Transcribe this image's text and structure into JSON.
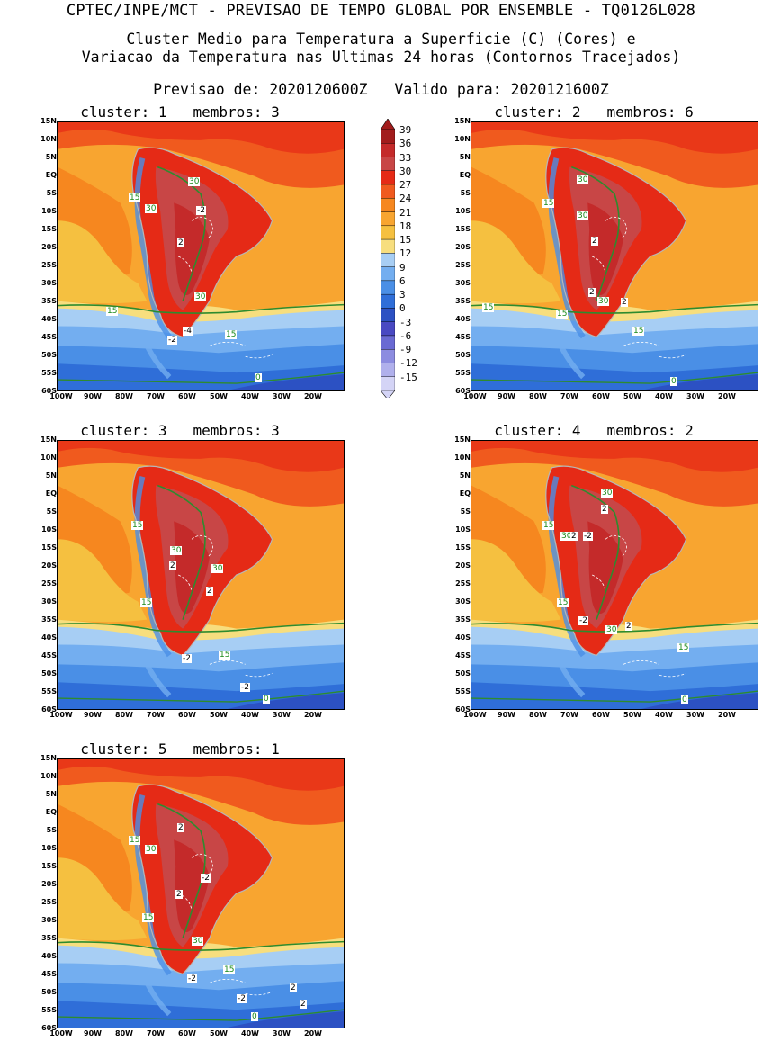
{
  "header": {
    "line1": "CPTEC/INPE/MCT - PREVISAO DE TEMPO GLOBAL POR ENSEMBLE - TQ0126L028",
    "line2": "Cluster Medio para Temperatura a Superficie (C) (Cores) e",
    "line3": "Variacao da Temperatura nas Ultimas 24 horas (Contornos Tracejados)",
    "line4": "Previsao de: 2020120600Z   Valido para: 2020121600Z"
  },
  "lat_labels": [
    "15N",
    "10N",
    "5N",
    "EQ",
    "5S",
    "10S",
    "15S",
    "20S",
    "25S",
    "30S",
    "35S",
    "40S",
    "45S",
    "50S",
    "55S",
    "60S"
  ],
  "lon_labels": [
    "100W",
    "90W",
    "80W",
    "70W",
    "60W",
    "50W",
    "40W",
    "30W",
    "20W"
  ],
  "colorbar": {
    "labels": [
      "39",
      "36",
      "33",
      "30",
      "27",
      "24",
      "21",
      "18",
      "15",
      "12",
      "9",
      "6",
      "3",
      "0",
      "-3",
      "-6",
      "-9",
      "-12",
      "-15"
    ],
    "colors": [
      "#a21c1c",
      "#c42a2a",
      "#c84646",
      "#e52a16",
      "#f05a1e",
      "#f6871f",
      "#f8a530",
      "#f5c040",
      "#f7de7e",
      "#a7cef4",
      "#73aef0",
      "#4a8fe6",
      "#2f6ed8",
      "#2c51c3",
      "#4949c2",
      "#6a6ad3",
      "#8c8ce0",
      "#b0b0ec",
      "#d4d4f6"
    ]
  },
  "panels": [
    {
      "title": "cluster: 1   membros: 3",
      "labels": [
        {
          "t": "15",
          "g": 1
        },
        {
          "t": "30",
          "g": 1
        },
        {
          "t": "30",
          "g": 1
        },
        {
          "t": "-2",
          "g": 0
        },
        {
          "t": "2",
          "g": 0
        },
        {
          "t": "30",
          "g": 1
        },
        {
          "t": "15",
          "g": 1
        },
        {
          "t": "-4",
          "g": 0
        },
        {
          "t": "-2",
          "g": 0
        },
        {
          "t": "15",
          "g": 1
        },
        {
          "t": "0",
          "g": 1
        }
      ]
    },
    {
      "title": "cluster: 2   membros: 6",
      "labels": [
        {
          "t": "30",
          "g": 1
        },
        {
          "t": "15",
          "g": 1
        },
        {
          "t": "30",
          "g": 1
        },
        {
          "t": "2",
          "g": 0
        },
        {
          "t": "2",
          "g": 0
        },
        {
          "t": "30",
          "g": 1
        },
        {
          "t": "2",
          "g": 0
        },
        {
          "t": "15",
          "g": 1
        },
        {
          "t": "15",
          "g": 1
        },
        {
          "t": "15",
          "g": 1
        },
        {
          "t": "0",
          "g": 1
        }
      ]
    },
    {
      "title": "cluster: 3   membros: 3",
      "labels": [
        {
          "t": "15",
          "g": 1
        },
        {
          "t": "30",
          "g": 1
        },
        {
          "t": "2",
          "g": 0
        },
        {
          "t": "30",
          "g": 1
        },
        {
          "t": "2",
          "g": 0
        },
        {
          "t": "15",
          "g": 1
        },
        {
          "t": "-2",
          "g": 0
        },
        {
          "t": "15",
          "g": 1
        },
        {
          "t": "-2",
          "g": 0
        },
        {
          "t": "0",
          "g": 1
        }
      ]
    },
    {
      "title": "cluster: 4   membros: 2",
      "labels": [
        {
          "t": "30",
          "g": 1
        },
        {
          "t": "2",
          "g": 0
        },
        {
          "t": "15",
          "g": 1
        },
        {
          "t": "30",
          "g": 1
        },
        {
          "t": "2",
          "g": 0
        },
        {
          "t": "-2",
          "g": 0
        },
        {
          "t": "15",
          "g": 1
        },
        {
          "t": "-2",
          "g": 0
        },
        {
          "t": "30",
          "g": 1
        },
        {
          "t": "2",
          "g": 0
        },
        {
          "t": "15",
          "g": 1
        },
        {
          "t": "0",
          "g": 1
        }
      ]
    },
    {
      "title": "cluster: 5   membros: 1",
      "labels": [
        {
          "t": "2",
          "g": 0
        },
        {
          "t": "15",
          "g": 1
        },
        {
          "t": "30",
          "g": 1
        },
        {
          "t": "-2",
          "g": 0
        },
        {
          "t": "2",
          "g": 0
        },
        {
          "t": "15",
          "g": 1
        },
        {
          "t": "30",
          "g": 1
        },
        {
          "t": "15",
          "g": 1
        },
        {
          "t": "-2",
          "g": 0
        },
        {
          "t": "-2",
          "g": 0
        },
        {
          "t": "2",
          "g": 0
        },
        {
          "t": "2",
          "g": 0
        },
        {
          "t": "0",
          "g": 1
        }
      ]
    }
  ]
}
